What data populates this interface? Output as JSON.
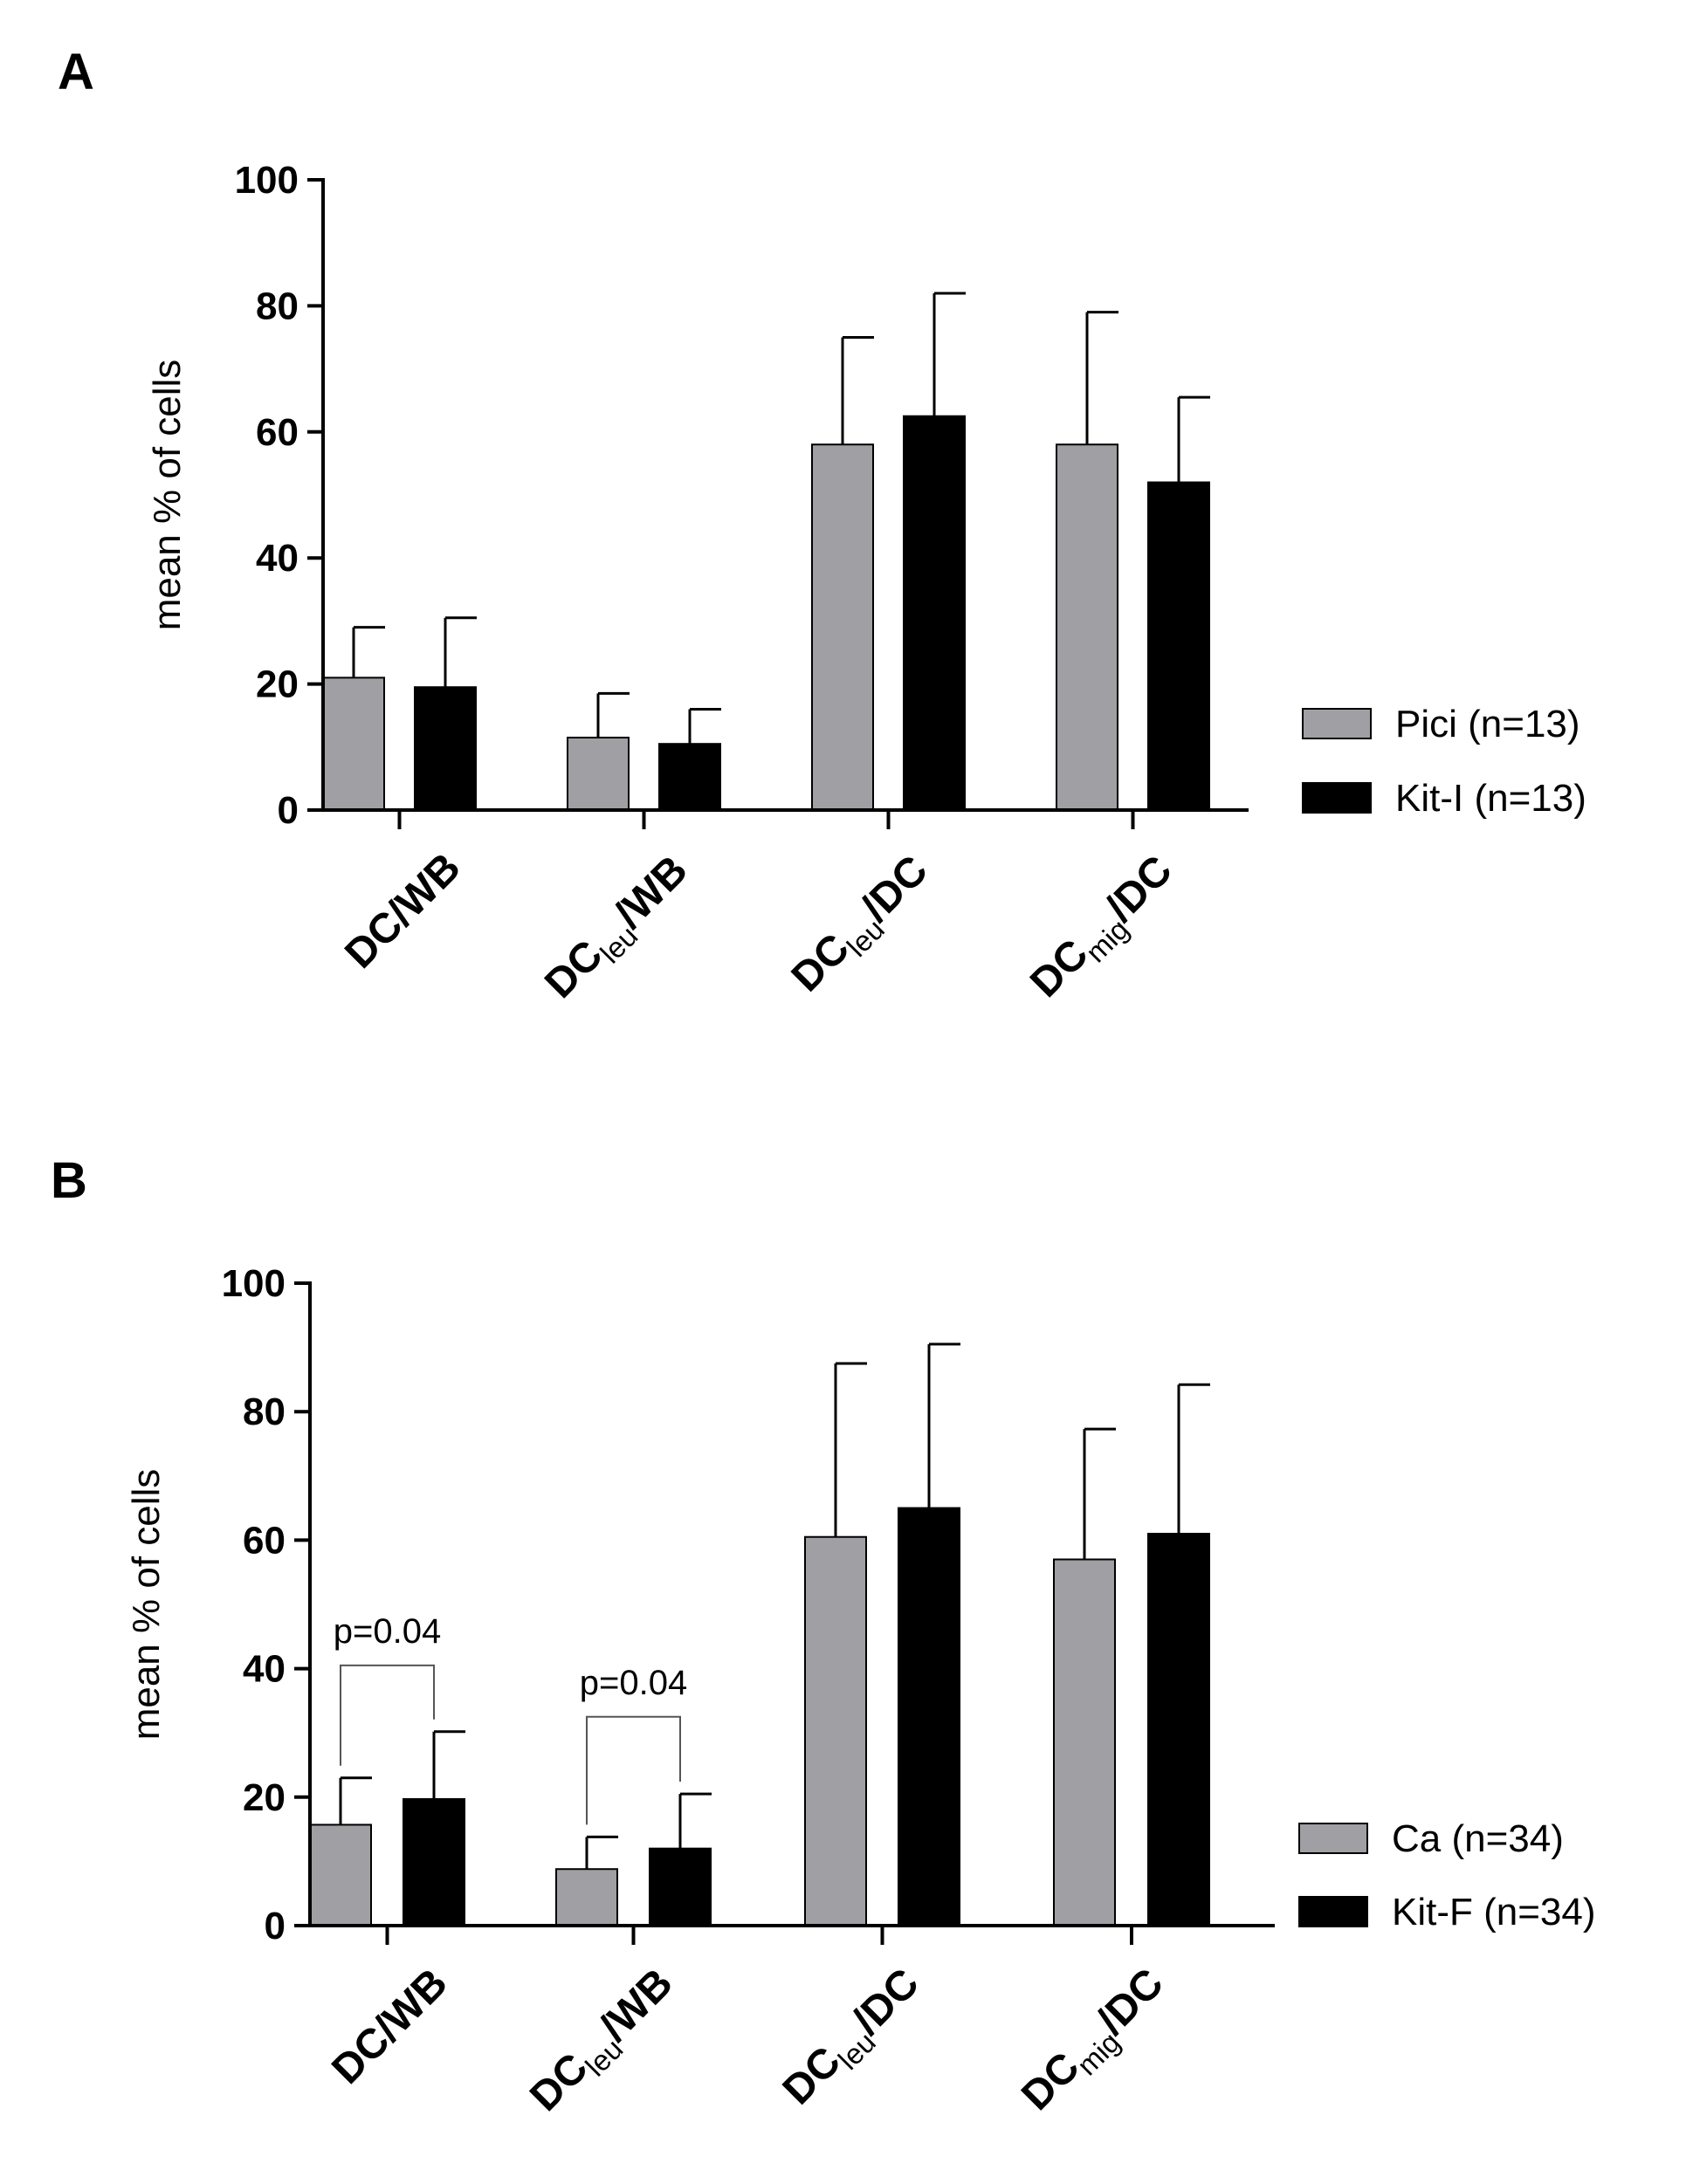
{
  "chart_data": [
    {
      "type": "bar",
      "panel_label": "A",
      "ylabel": "mean % of cells",
      "xlabel": "",
      "ylim": [
        0,
        100
      ],
      "yticks": [
        0,
        20,
        40,
        60,
        80,
        100
      ],
      "grid": false,
      "legend_position": "right",
      "categories": [
        {
          "main": "DC",
          "sub": "",
          "rest": "/WB"
        },
        {
          "main": "DC",
          "sub": "leu",
          "rest": "/WB"
        },
        {
          "main": "DC",
          "sub": "leu",
          "rest": "/DC"
        },
        {
          "main": "DC",
          "sub": "mig",
          "rest": "/DC"
        }
      ],
      "series": [
        {
          "name": "Pici (n=13)",
          "color": "#a0a0a4",
          "values": [
            21,
            11.5,
            58,
            58
          ],
          "errors": [
            8,
            7,
            17,
            21
          ]
        },
        {
          "name": "Kit-I (n=13)",
          "color": "#000000",
          "values": [
            19.5,
            10.5,
            62.5,
            52
          ],
          "errors": [
            11,
            5.5,
            19.5,
            13.5
          ]
        }
      ],
      "annotations": []
    },
    {
      "type": "bar",
      "panel_label": "B",
      "ylabel": "mean % of cells",
      "xlabel": "",
      "ylim": [
        0,
        100
      ],
      "yticks": [
        0,
        20,
        40,
        60,
        80,
        100
      ],
      "grid": false,
      "legend_position": "right",
      "categories": [
        {
          "main": "DC",
          "sub": "",
          "rest": "/WB"
        },
        {
          "main": "DC",
          "sub": "leu",
          "rest": "/WB"
        },
        {
          "main": "DC",
          "sub": "leu",
          "rest": "/DC"
        },
        {
          "main": "DC",
          "sub": "mig",
          "rest": "/DC"
        }
      ],
      "series": [
        {
          "name": "Ca (n=34)",
          "color": "#a0a0a4",
          "values": [
            15.7,
            8.8,
            60.5,
            57
          ],
          "errors": [
            7.3,
            5,
            27,
            20.3
          ]
        },
        {
          "name": "Kit-F (n=34)",
          "color": "#000000",
          "values": [
            19.7,
            12,
            65,
            61
          ],
          "errors": [
            10.5,
            8.5,
            25.5,
            23.2
          ]
        }
      ],
      "annotations": [
        {
          "category_index": 0,
          "text": "p=0.04",
          "bracket_y": 40.5
        },
        {
          "category_index": 1,
          "text": "p=0.04",
          "bracket_y": 32.5
        }
      ]
    }
  ]
}
